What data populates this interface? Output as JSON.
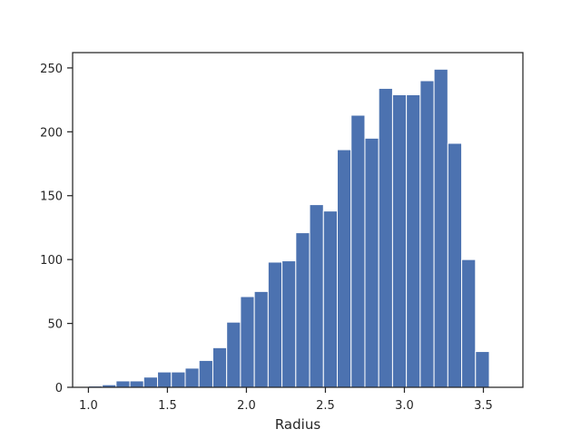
{
  "chart_data": {
    "type": "bar",
    "title": "",
    "xlabel": "Radius",
    "ylabel": "",
    "xlim": [
      0.9,
      3.75
    ],
    "ylim": [
      0,
      262
    ],
    "grid": false,
    "bar_color": "#4c72b0",
    "bin_edges": [
      1.0,
      1.0875,
      1.175,
      1.2625,
      1.35,
      1.4375,
      1.525,
      1.6125,
      1.7,
      1.7875,
      1.875,
      1.9625,
      2.05,
      2.1375,
      2.225,
      2.3125,
      2.4,
      2.4875,
      2.575,
      2.6625,
      2.75,
      2.8375,
      2.925,
      3.0125,
      3.1,
      3.1875,
      3.275,
      3.3625,
      3.45,
      3.5375,
      3.625
    ],
    "values": [
      1,
      2,
      5,
      5,
      8,
      12,
      12,
      15,
      21,
      31,
      51,
      71,
      75,
      98,
      99,
      121,
      143,
      138,
      186,
      213,
      195,
      234,
      229,
      229,
      240,
      249,
      191,
      100,
      28,
      0
    ],
    "xticks": [
      1.0,
      1.5,
      2.0,
      2.5,
      3.0,
      3.5
    ],
    "xtick_labels": [
      "1.0",
      "1.5",
      "2.0",
      "2.5",
      "3.0",
      "3.5"
    ],
    "yticks": [
      0,
      50,
      100,
      150,
      200,
      250
    ],
    "ytick_labels": [
      "0",
      "50",
      "100",
      "150",
      "200",
      "250"
    ]
  }
}
